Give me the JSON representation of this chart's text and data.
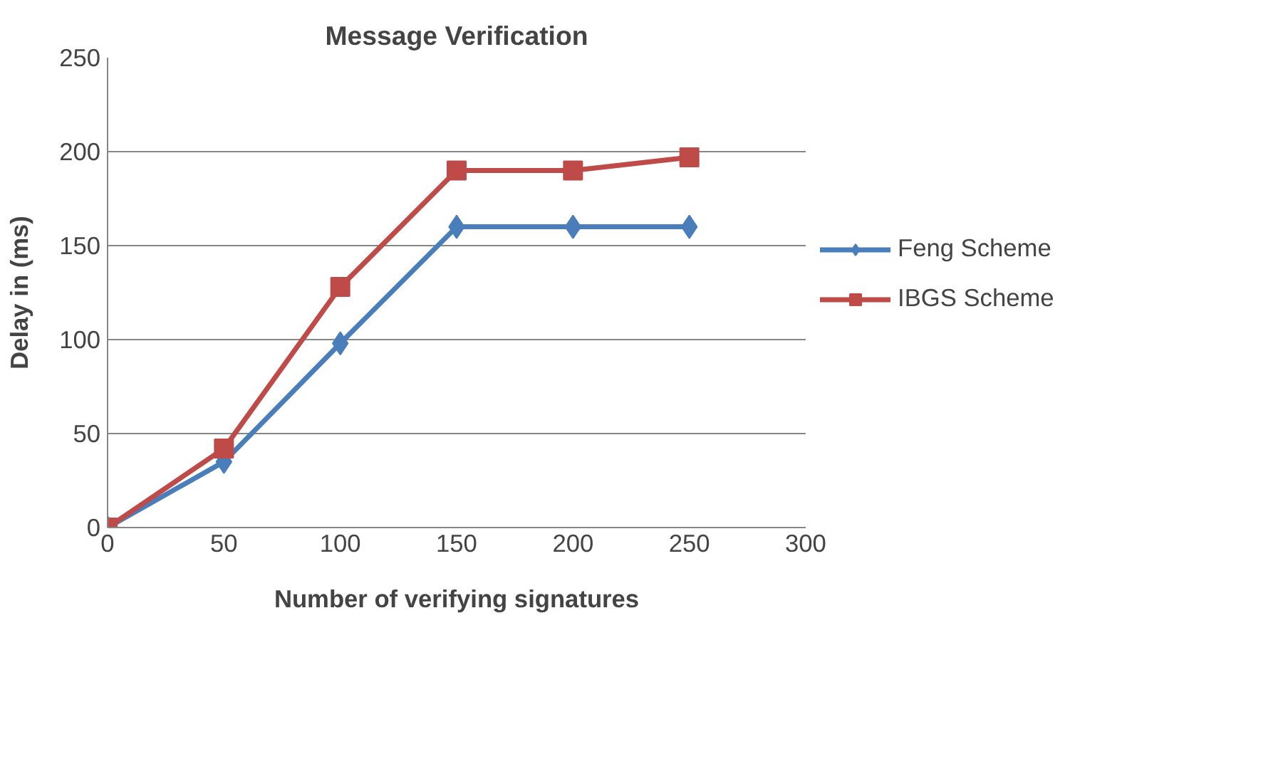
{
  "chart_data": {
    "type": "line",
    "title": "Message Verification",
    "xlabel": "Number of verifying signatures",
    "ylabel": "Delay in (ms)",
    "x": [
      0,
      50,
      100,
      150,
      200,
      250
    ],
    "series": [
      {
        "name": "Feng Scheme",
        "color": "#4a7ebb",
        "marker": "diamond",
        "values": [
          0,
          35,
          98,
          160,
          160,
          160
        ]
      },
      {
        "name": "IBGS Scheme",
        "color": "#be4b48",
        "marker": "square",
        "values": [
          0,
          42,
          128,
          190,
          190,
          197
        ]
      }
    ],
    "xlim": [
      0,
      300
    ],
    "xticks": [
      0,
      50,
      100,
      150,
      200,
      250,
      300
    ],
    "ylim": [
      0,
      250
    ],
    "yticks": [
      0,
      50,
      100,
      150,
      200,
      250
    ],
    "grid": "y",
    "legend": "right",
    "line_style": "solid"
  }
}
